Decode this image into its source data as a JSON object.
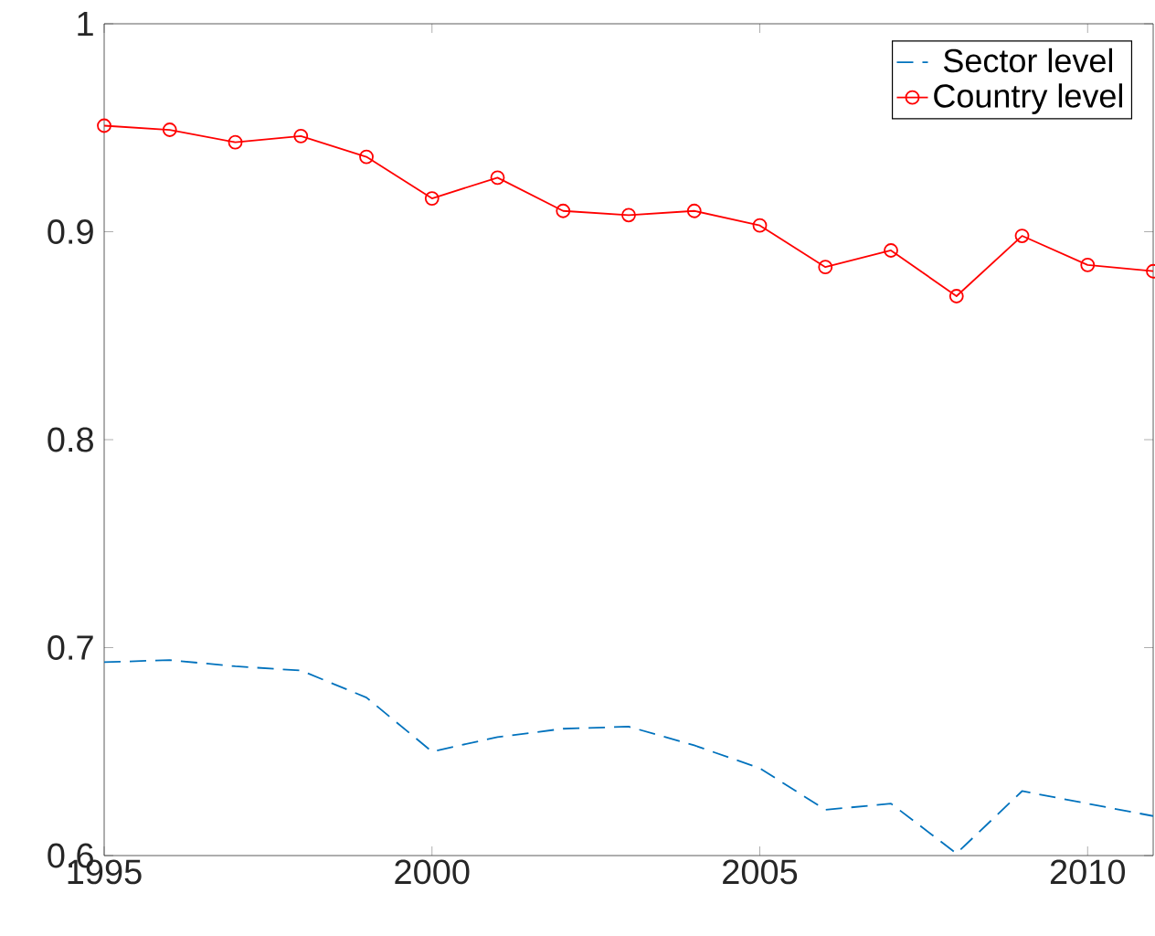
{
  "chart_data": {
    "type": "line",
    "x": [
      1995,
      1996,
      1997,
      1998,
      1999,
      2000,
      2001,
      2002,
      2003,
      2004,
      2005,
      2006,
      2007,
      2008,
      2009,
      2010,
      2011
    ],
    "series": [
      {
        "name": "Sector level",
        "color": "#0072bd",
        "marker": "none",
        "line_style": "dashed",
        "values": [
          0.693,
          0.694,
          0.691,
          0.689,
          0.676,
          0.65,
          0.657,
          0.661,
          0.662,
          0.653,
          0.642,
          0.622,
          0.625,
          0.601,
          0.631,
          0.625,
          0.619
        ]
      },
      {
        "name": "Country level",
        "color": "#ff0000",
        "marker": "circle",
        "line_style": "solid",
        "values": [
          0.951,
          0.949,
          0.943,
          0.946,
          0.936,
          0.916,
          0.926,
          0.91,
          0.908,
          0.91,
          0.903,
          0.883,
          0.891,
          0.869,
          0.898,
          0.884,
          0.881
        ]
      }
    ],
    "xlim": [
      1995,
      2011
    ],
    "ylim": [
      0.6,
      1
    ],
    "xticks": [
      1995,
      2000,
      2005,
      2010
    ],
    "yticks": [
      {
        "value": 0.6,
        "label": "0.6"
      },
      {
        "value": 0.7,
        "label": "0.7"
      },
      {
        "value": 0.8,
        "label": "0.8"
      },
      {
        "value": 0.9,
        "label": "0.9"
      },
      1
    ],
    "grid": false,
    "legend": "top right"
  }
}
